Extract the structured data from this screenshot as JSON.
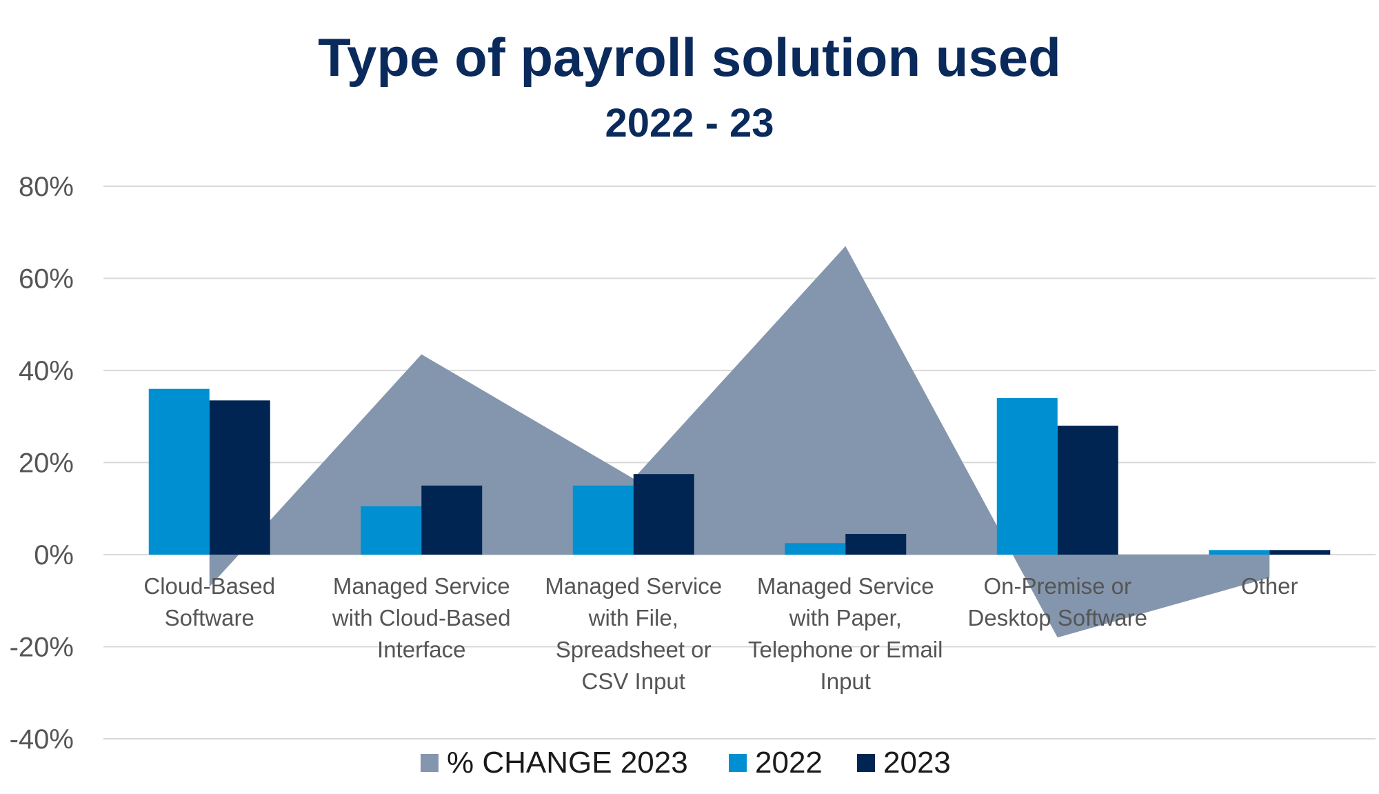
{
  "chart_data": {
    "type": "bar",
    "title": "Type of payroll solution used",
    "subtitle": "2022 - 23",
    "categories": [
      [
        "Cloud-Based",
        "Software"
      ],
      [
        "Managed Service",
        "with Cloud-Based",
        "Interface"
      ],
      [
        "Managed Service",
        "with File,",
        "Spreadsheet or",
        "CSV Input"
      ],
      [
        "Managed Service",
        "with Paper,",
        "Telephone or Email",
        "Input"
      ],
      [
        "On-Premise or",
        "Desktop Software"
      ],
      [
        "Other"
      ]
    ],
    "series": [
      {
        "name": "% CHANGE 2023",
        "type": "area",
        "color": "#8496ad",
        "values": [
          -7,
          43.5,
          16.5,
          67,
          -18,
          -5
        ]
      },
      {
        "name": "2022",
        "type": "bar",
        "color": "#0090d2",
        "values": [
          36,
          10.5,
          15,
          2.5,
          34,
          1
        ]
      },
      {
        "name": "2023",
        "type": "bar",
        "color": "#002552",
        "values": [
          33.5,
          15,
          17.5,
          4.5,
          28,
          1
        ]
      }
    ],
    "ylim": [
      -40,
      80
    ],
    "yticks": [
      80,
      60,
      40,
      20,
      0,
      -20,
      -40
    ],
    "ytick_labels": [
      "80%",
      "60%",
      "40%",
      "20%",
      "0%",
      "-20%",
      "-40%"
    ],
    "xlabel": "",
    "ylabel": "",
    "grid": true,
    "legend_position": "bottom"
  }
}
